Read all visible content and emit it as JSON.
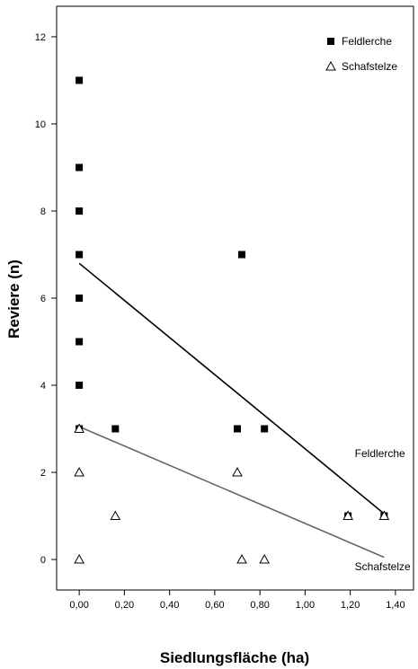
{
  "chart_data": {
    "type": "scatter",
    "xlabel": "Siedlungsfläche (ha)",
    "ylabel": "Reviere (n)",
    "xlim": [
      -0.1,
      1.48
    ],
    "ylim": [
      -0.7,
      12.7
    ],
    "x_ticks": [
      0,
      0.2,
      0.4,
      0.6,
      0.8,
      1.0,
      1.2,
      1.4
    ],
    "x_tick_labels": [
      "0,00",
      "0,20",
      "0,40",
      "0,60",
      "0,80",
      "1,00",
      "1,20",
      "1,40"
    ],
    "y_ticks": [
      0,
      2,
      4,
      6,
      8,
      10,
      12
    ],
    "y_tick_labels": [
      "0",
      "2",
      "4",
      "6",
      "8",
      "10",
      "12"
    ],
    "grid": false,
    "legend_position": "top-right",
    "series": [
      {
        "name": "Feldlerche",
        "marker": "filled-square",
        "color": "#000000",
        "points": [
          {
            "x": 0,
            "y": 11
          },
          {
            "x": 0,
            "y": 9
          },
          {
            "x": 0,
            "y": 8
          },
          {
            "x": 0,
            "y": 7
          },
          {
            "x": 0,
            "y": 6
          },
          {
            "x": 0,
            "y": 5
          },
          {
            "x": 0,
            "y": 4
          },
          {
            "x": 0,
            "y": 3
          },
          {
            "x": 0.16,
            "y": 3
          },
          {
            "x": 0.7,
            "y": 3
          },
          {
            "x": 0.72,
            "y": 7
          },
          {
            "x": 0.82,
            "y": 3
          },
          {
            "x": 1.19,
            "y": 1
          },
          {
            "x": 1.35,
            "y": 1
          }
        ],
        "fit_line": {
          "x": [
            0,
            1.35
          ],
          "y": [
            6.8,
            1.05
          ],
          "color": "#000000"
        }
      },
      {
        "name": "Schafstelze",
        "marker": "open-triangle",
        "color": "#000000",
        "points": [
          {
            "x": 0,
            "y": 3
          },
          {
            "x": 0,
            "y": 2
          },
          {
            "x": 0,
            "y": 0
          },
          {
            "x": 0.16,
            "y": 1
          },
          {
            "x": 0.7,
            "y": 2
          },
          {
            "x": 0.72,
            "y": 0
          },
          {
            "x": 0.82,
            "y": 0
          },
          {
            "x": 1.19,
            "y": 1
          },
          {
            "x": 1.35,
            "y": 1
          }
        ],
        "fit_line": {
          "x": [
            0,
            1.35
          ],
          "y": [
            3.05,
            0.05
          ],
          "color": "#666666"
        }
      }
    ],
    "annotations": [
      {
        "text": "Feldlerche",
        "x": 1.22,
        "y": 2.35
      },
      {
        "text": "Schafstelze",
        "x": 1.22,
        "y": -0.25
      }
    ]
  }
}
